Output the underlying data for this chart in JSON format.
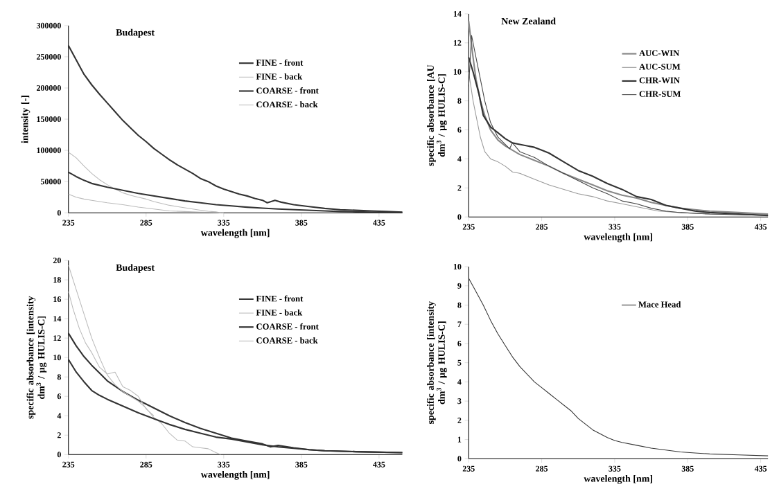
{
  "chart_data": [
    {
      "type": "line",
      "title": "Budapest",
      "xlabel": "wavelength [nm]",
      "ylabel": "intensity [-]",
      "xlim": [
        235,
        450
      ],
      "xticks": [
        235,
        285,
        335,
        385,
        435
      ],
      "ylim": [
        0,
        300000
      ],
      "yticks": [
        0,
        50000,
        100000,
        150000,
        200000,
        250000,
        300000
      ],
      "grid": false,
      "legend": "top right",
      "series": [
        {
          "name": "FINE - front",
          "color": "#333333",
          "x": [
            235,
            240,
            245,
            250,
            255,
            260,
            265,
            270,
            275,
            280,
            285,
            290,
            295,
            300,
            305,
            310,
            315,
            320,
            325,
            330,
            335,
            340,
            345,
            350,
            355,
            360,
            363,
            368,
            372,
            380,
            390,
            400,
            410,
            420,
            430,
            440,
            450
          ],
          "values": [
            268000,
            245000,
            222000,
            205000,
            190000,
            176000,
            162000,
            148000,
            136000,
            124000,
            114000,
            103000,
            94000,
            85000,
            77000,
            70000,
            63000,
            55000,
            50000,
            43000,
            38000,
            34000,
            30000,
            27000,
            23000,
            20000,
            16000,
            20000,
            17000,
            13000,
            10000,
            7000,
            5000,
            4000,
            3000,
            2000,
            1000
          ]
        },
        {
          "name": "FINE - back",
          "color": "#bbbbbb",
          "x": [
            235,
            240,
            245,
            250,
            255,
            260,
            265,
            270,
            275,
            280,
            285,
            290,
            295,
            300,
            305,
            310,
            315,
            320,
            325,
            330,
            333
          ],
          "values": [
            97000,
            88000,
            75000,
            63000,
            53000,
            45000,
            38000,
            32000,
            28000,
            25000,
            22000,
            18000,
            15000,
            12000,
            10000,
            8000,
            6000,
            4000,
            2500,
            1500,
            0
          ]
        },
        {
          "name": "COARSE - front",
          "color": "#333333",
          "x": [
            235,
            240,
            245,
            250,
            260,
            270,
            280,
            290,
            300,
            310,
            320,
            330,
            340,
            350,
            360,
            370,
            380,
            390,
            400,
            410,
            420,
            430,
            450
          ],
          "values": [
            65000,
            58000,
            52000,
            47000,
            41000,
            36000,
            31000,
            27000,
            23000,
            19000,
            16000,
            13000,
            11000,
            9000,
            7500,
            6000,
            5000,
            4000,
            3000,
            2000,
            1500,
            1000,
            500
          ]
        },
        {
          "name": "COARSE - back",
          "color": "#bbbbbb",
          "x": [
            235,
            240,
            245,
            250,
            260,
            270,
            280,
            290,
            300,
            310,
            320,
            330,
            335
          ],
          "values": [
            30000,
            25000,
            22000,
            20000,
            16000,
            13000,
            9000,
            6000,
            3000,
            2000,
            1000,
            500,
            0
          ]
        }
      ]
    },
    {
      "type": "line",
      "title": "New Zealand",
      "xlabel": "wavelength [nm]",
      "ylabel": "specific absorbance [AU dm$^{3}$ / µg HULIS-C]",
      "xlim": [
        235,
        440
      ],
      "xticks": [
        235,
        285,
        335,
        385,
        435
      ],
      "ylim": [
        0,
        14
      ],
      "yticks": [
        0,
        2,
        4,
        6,
        8,
        10,
        12,
        14
      ],
      "grid": false,
      "legend": "top right",
      "series": [
        {
          "name": "AUC-WIN",
          "color": "#888888",
          "x": [
            235,
            238,
            240,
            243,
            246,
            250,
            255,
            260,
            265,
            270,
            280,
            290,
            300,
            310,
            320,
            330,
            340,
            350,
            360,
            370,
            380,
            390,
            400,
            420,
            440
          ],
          "values": [
            13.5,
            11,
            9.5,
            8,
            7,
            6,
            5.3,
            4.9,
            4.6,
            4.3,
            3.9,
            3.5,
            3.0,
            2.6,
            2.2,
            1.8,
            1.5,
            1.3,
            1.0,
            0.8,
            0.6,
            0.5,
            0.4,
            0.3,
            0.2
          ]
        },
        {
          "name": "AUC-SUM",
          "color": "#999999",
          "x": [
            235,
            238,
            240,
            243,
            246,
            250,
            255,
            260,
            265,
            270,
            280,
            290,
            300,
            310,
            320,
            330,
            340,
            350,
            365,
            380,
            400,
            440
          ],
          "values": [
            10,
            8,
            7,
            5.5,
            4.5,
            4,
            3.8,
            3.5,
            3.1,
            3.0,
            2.6,
            2.2,
            1.9,
            1.6,
            1.4,
            1.1,
            0.9,
            0.7,
            0.4,
            0.3,
            0.2,
            0.1
          ]
        },
        {
          "name": "CHR-WIN",
          "color": "#333333",
          "x": [
            235,
            238,
            242,
            245,
            250,
            255,
            260,
            265,
            270,
            280,
            285,
            290,
            300,
            310,
            320,
            330,
            340,
            350,
            360,
            370,
            380,
            390,
            400,
            420,
            440
          ],
          "values": [
            11,
            10,
            8.5,
            7,
            6.2,
            5.8,
            5.4,
            5.1,
            5.0,
            4.8,
            4.6,
            4.4,
            3.8,
            3.2,
            2.8,
            2.3,
            1.9,
            1.4,
            1.2,
            0.8,
            0.6,
            0.4,
            0.3,
            0.2,
            0.1
          ]
        },
        {
          "name": "CHR-SUM",
          "color": "#444444",
          "x": [
            235,
            237,
            240,
            243,
            246,
            250,
            255,
            260,
            263,
            265,
            270,
            280,
            290,
            300,
            310,
            320,
            330,
            340,
            350,
            360,
            370,
            380,
            400,
            440
          ],
          "values": [
            9,
            12.5,
            11,
            9.5,
            8,
            6.5,
            5.5,
            5.0,
            4.7,
            5.1,
            4.5,
            4.1,
            3.5,
            3.0,
            2.5,
            2.0,
            1.6,
            1.1,
            0.9,
            0.6,
            0.4,
            0.3,
            0.2,
            0.1
          ]
        }
      ]
    },
    {
      "type": "line",
      "title": "Budapest",
      "xlabel": "wavelength [nm]",
      "ylabel": "specific absorbance [intensity dm$^{3}$ / µg HULIS-C]",
      "xlim": [
        235,
        450
      ],
      "xticks": [
        235,
        285,
        335,
        385,
        435
      ],
      "ylim": [
        0,
        20
      ],
      "yticks": [
        0,
        2,
        4,
        6,
        8,
        10,
        12,
        14,
        16,
        18,
        20
      ],
      "grid": false,
      "legend": "top right",
      "series": [
        {
          "name": "FINE - front",
          "color": "#333333",
          "x": [
            235,
            240,
            245,
            250,
            255,
            260,
            270,
            280,
            290,
            300,
            310,
            320,
            330,
            340,
            350,
            360,
            365,
            370,
            380,
            390,
            400,
            420,
            450
          ],
          "values": [
            12.5,
            11.2,
            10.1,
            9.2,
            8.4,
            7.6,
            6.5,
            5.6,
            4.8,
            4.0,
            3.3,
            2.7,
            2.2,
            1.7,
            1.4,
            1.1,
            0.8,
            0.95,
            0.7,
            0.5,
            0.4,
            0.3,
            0.2
          ]
        },
        {
          "name": "FINE - back",
          "color": "#bbbbbb",
          "x": [
            235,
            240,
            245,
            250,
            255,
            260,
            265,
            270,
            275,
            280,
            285,
            290,
            295,
            300,
            305,
            310,
            315,
            320,
            325,
            330,
            333
          ],
          "values": [
            19.5,
            17,
            14.5,
            12,
            10,
            8.2,
            7.2,
            6.5,
            6.0,
            5.5,
            4.8,
            3.8,
            3.2,
            2.2,
            1.5,
            1.4,
            0.8,
            0.7,
            0.6,
            0.2,
            0
          ]
        },
        {
          "name": "COARSE - front",
          "color": "#333333",
          "x": [
            235,
            240,
            245,
            250,
            255,
            260,
            270,
            280,
            290,
            300,
            310,
            320,
            330,
            340,
            350,
            360,
            370,
            380,
            390,
            400,
            420,
            450
          ],
          "values": [
            9.8,
            8.5,
            7.5,
            6.6,
            6.1,
            5.7,
            5.0,
            4.3,
            3.7,
            3.1,
            2.6,
            2.2,
            1.8,
            1.6,
            1.3,
            1.0,
            0.8,
            0.65,
            0.5,
            0.4,
            0.3,
            0.2
          ]
        },
        {
          "name": "COARSE - back",
          "color": "#bbbbbb",
          "x": [
            235,
            238,
            242,
            246,
            250,
            255,
            260,
            265,
            270,
            275,
            280,
            285,
            290
          ],
          "values": [
            16.8,
            15,
            13,
            11.5,
            10.5,
            9,
            8.3,
            8.5,
            7.0,
            6.6,
            6.0,
            4.7,
            4.0
          ]
        }
      ]
    },
    {
      "type": "line",
      "xlabel": "wavelength [nm]",
      "ylabel": "specific absorbance [intensity dm$^{3}$ / µg HULIS-C]",
      "xlim": [
        235,
        440
      ],
      "xticks": [
        235,
        285,
        335,
        385,
        435
      ],
      "ylim": [
        0,
        10
      ],
      "yticks": [
        0,
        1,
        2,
        3,
        4,
        5,
        6,
        7,
        8,
        9,
        10
      ],
      "grid": false,
      "legend": "top right",
      "series": [
        {
          "name": "Mace Head",
          "color": "#333333",
          "x": [
            235,
            240,
            245,
            250,
            255,
            260,
            265,
            270,
            275,
            280,
            285,
            290,
            295,
            300,
            305,
            310,
            315,
            320,
            325,
            330,
            335,
            340,
            350,
            360,
            370,
            380,
            390,
            400,
            420,
            440
          ],
          "values": [
            9.4,
            8.7,
            8.0,
            7.2,
            6.5,
            5.9,
            5.3,
            4.8,
            4.4,
            4.0,
            3.7,
            3.4,
            3.1,
            2.8,
            2.5,
            2.1,
            1.8,
            1.5,
            1.3,
            1.1,
            0.95,
            0.85,
            0.7,
            0.55,
            0.45,
            0.35,
            0.3,
            0.25,
            0.2,
            0.15
          ]
        }
      ]
    }
  ]
}
